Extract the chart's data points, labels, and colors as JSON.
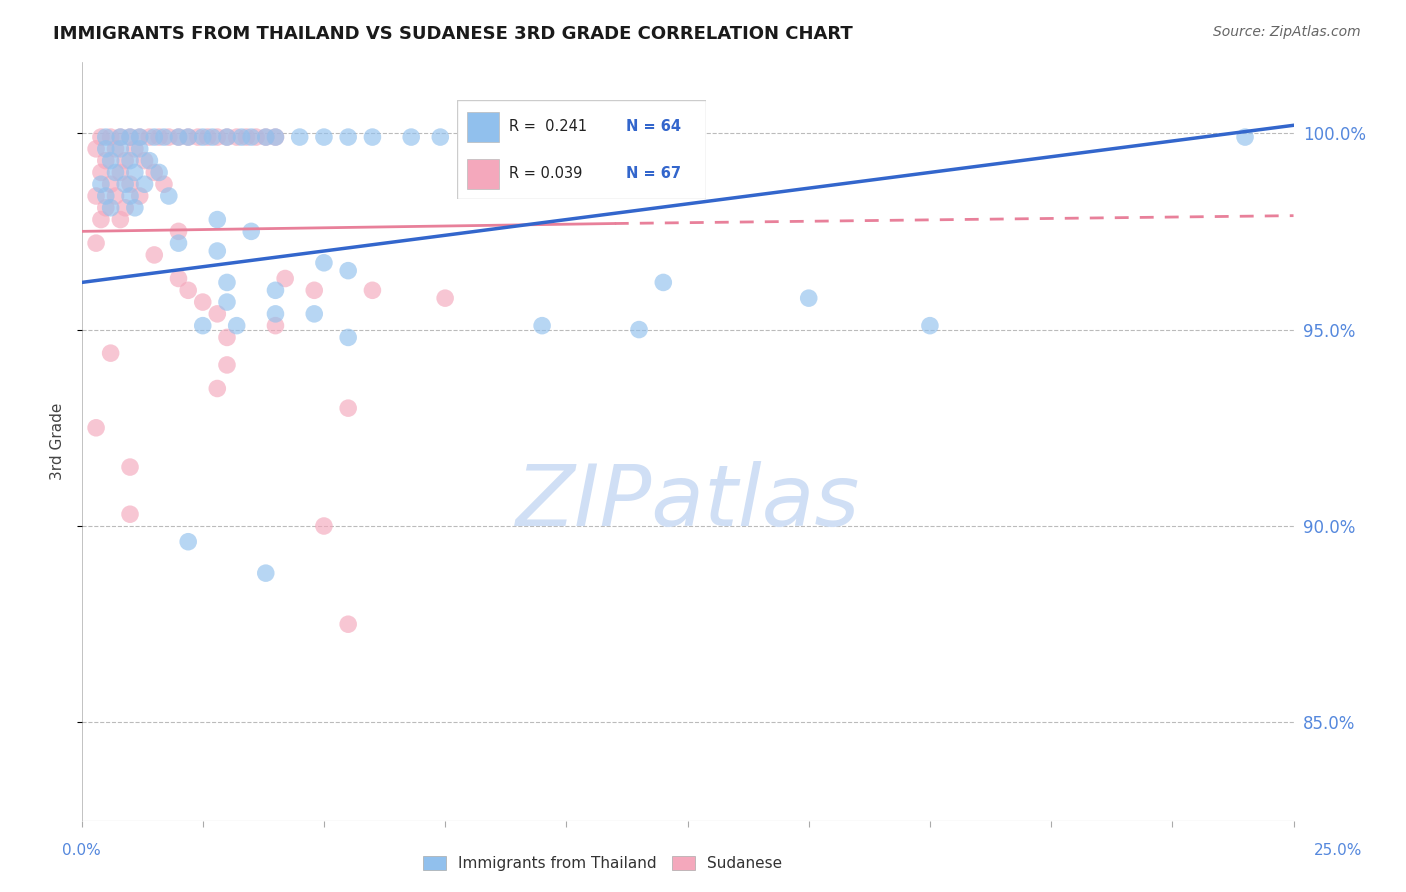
{
  "title": "IMMIGRANTS FROM THAILAND VS SUDANESE 3RD GRADE CORRELATION CHART",
  "source": "Source: ZipAtlas.com",
  "ylabel": "3rd Grade",
  "xlim": [
    0.0,
    0.25
  ],
  "ylim": [
    0.825,
    1.018
  ],
  "yticks": [
    1.0,
    0.95,
    0.9,
    0.85
  ],
  "ytick_labels": [
    "100.0%",
    "95.0%",
    "90.0%",
    "85.0%"
  ],
  "xtick_labels_show": [
    "0.0%",
    "25.0%"
  ],
  "legend_blue_r": "R =  0.241",
  "legend_blue_n": "N = 64",
  "legend_pink_r": "R = 0.039",
  "legend_pink_n": "N = 67",
  "blue_color": "#91C0ED",
  "pink_color": "#F4A8BC",
  "blue_line_color": "#3366CC",
  "pink_line_color": "#E8809A",
  "watermark_color": "#D0DFF5",
  "blue_trendline": [
    [
      0.0,
      0.962
    ],
    [
      0.25,
      1.002
    ]
  ],
  "pink_trendline_solid": [
    [
      0.0,
      0.975
    ],
    [
      0.11,
      0.977
    ]
  ],
  "pink_trendline_dashed": [
    [
      0.11,
      0.977
    ],
    [
      0.25,
      0.979
    ]
  ],
  "blue_scatter": [
    [
      0.005,
      0.999
    ],
    [
      0.008,
      0.999
    ],
    [
      0.01,
      0.999
    ],
    [
      0.012,
      0.999
    ],
    [
      0.015,
      0.999
    ],
    [
      0.017,
      0.999
    ],
    [
      0.02,
      0.999
    ],
    [
      0.022,
      0.999
    ],
    [
      0.025,
      0.999
    ],
    [
      0.027,
      0.999
    ],
    [
      0.03,
      0.999
    ],
    [
      0.033,
      0.999
    ],
    [
      0.035,
      0.999
    ],
    [
      0.038,
      0.999
    ],
    [
      0.04,
      0.999
    ],
    [
      0.045,
      0.999
    ],
    [
      0.05,
      0.999
    ],
    [
      0.055,
      0.999
    ],
    [
      0.06,
      0.999
    ],
    [
      0.068,
      0.999
    ],
    [
      0.074,
      0.999
    ],
    [
      0.08,
      0.999
    ],
    [
      0.005,
      0.996
    ],
    [
      0.008,
      0.996
    ],
    [
      0.012,
      0.996
    ],
    [
      0.006,
      0.993
    ],
    [
      0.01,
      0.993
    ],
    [
      0.014,
      0.993
    ],
    [
      0.007,
      0.99
    ],
    [
      0.011,
      0.99
    ],
    [
      0.016,
      0.99
    ],
    [
      0.004,
      0.987
    ],
    [
      0.009,
      0.987
    ],
    [
      0.013,
      0.987
    ],
    [
      0.005,
      0.984
    ],
    [
      0.01,
      0.984
    ],
    [
      0.018,
      0.984
    ],
    [
      0.006,
      0.981
    ],
    [
      0.011,
      0.981
    ],
    [
      0.028,
      0.978
    ],
    [
      0.035,
      0.975
    ],
    [
      0.02,
      0.972
    ],
    [
      0.028,
      0.97
    ],
    [
      0.05,
      0.967
    ],
    [
      0.055,
      0.965
    ],
    [
      0.03,
      0.962
    ],
    [
      0.04,
      0.96
    ],
    [
      0.03,
      0.957
    ],
    [
      0.04,
      0.954
    ],
    [
      0.048,
      0.954
    ],
    [
      0.025,
      0.951
    ],
    [
      0.032,
      0.951
    ],
    [
      0.055,
      0.948
    ],
    [
      0.095,
      0.951
    ],
    [
      0.115,
      0.95
    ],
    [
      0.12,
      0.962
    ],
    [
      0.15,
      0.958
    ],
    [
      0.175,
      0.951
    ],
    [
      0.24,
      0.999
    ],
    [
      0.022,
      0.896
    ],
    [
      0.038,
      0.888
    ]
  ],
  "pink_scatter": [
    [
      0.004,
      0.999
    ],
    [
      0.006,
      0.999
    ],
    [
      0.008,
      0.999
    ],
    [
      0.01,
      0.999
    ],
    [
      0.012,
      0.999
    ],
    [
      0.014,
      0.999
    ],
    [
      0.016,
      0.999
    ],
    [
      0.018,
      0.999
    ],
    [
      0.02,
      0.999
    ],
    [
      0.022,
      0.999
    ],
    [
      0.024,
      0.999
    ],
    [
      0.026,
      0.999
    ],
    [
      0.028,
      0.999
    ],
    [
      0.03,
      0.999
    ],
    [
      0.032,
      0.999
    ],
    [
      0.034,
      0.999
    ],
    [
      0.036,
      0.999
    ],
    [
      0.038,
      0.999
    ],
    [
      0.04,
      0.999
    ],
    [
      0.003,
      0.996
    ],
    [
      0.007,
      0.996
    ],
    [
      0.011,
      0.996
    ],
    [
      0.005,
      0.993
    ],
    [
      0.009,
      0.993
    ],
    [
      0.013,
      0.993
    ],
    [
      0.004,
      0.99
    ],
    [
      0.008,
      0.99
    ],
    [
      0.015,
      0.99
    ],
    [
      0.006,
      0.987
    ],
    [
      0.01,
      0.987
    ],
    [
      0.017,
      0.987
    ],
    [
      0.003,
      0.984
    ],
    [
      0.007,
      0.984
    ],
    [
      0.012,
      0.984
    ],
    [
      0.005,
      0.981
    ],
    [
      0.009,
      0.981
    ],
    [
      0.004,
      0.978
    ],
    [
      0.008,
      0.978
    ],
    [
      0.02,
      0.975
    ],
    [
      0.003,
      0.972
    ],
    [
      0.015,
      0.969
    ],
    [
      0.02,
      0.963
    ],
    [
      0.022,
      0.96
    ],
    [
      0.025,
      0.957
    ],
    [
      0.028,
      0.954
    ],
    [
      0.04,
      0.951
    ],
    [
      0.042,
      0.963
    ],
    [
      0.048,
      0.96
    ],
    [
      0.03,
      0.948
    ],
    [
      0.006,
      0.944
    ],
    [
      0.03,
      0.941
    ],
    [
      0.028,
      0.935
    ],
    [
      0.06,
      0.96
    ],
    [
      0.075,
      0.958
    ],
    [
      0.055,
      0.93
    ],
    [
      0.003,
      0.925
    ],
    [
      0.01,
      0.915
    ],
    [
      0.01,
      0.903
    ],
    [
      0.05,
      0.9
    ],
    [
      0.055,
      0.875
    ]
  ]
}
